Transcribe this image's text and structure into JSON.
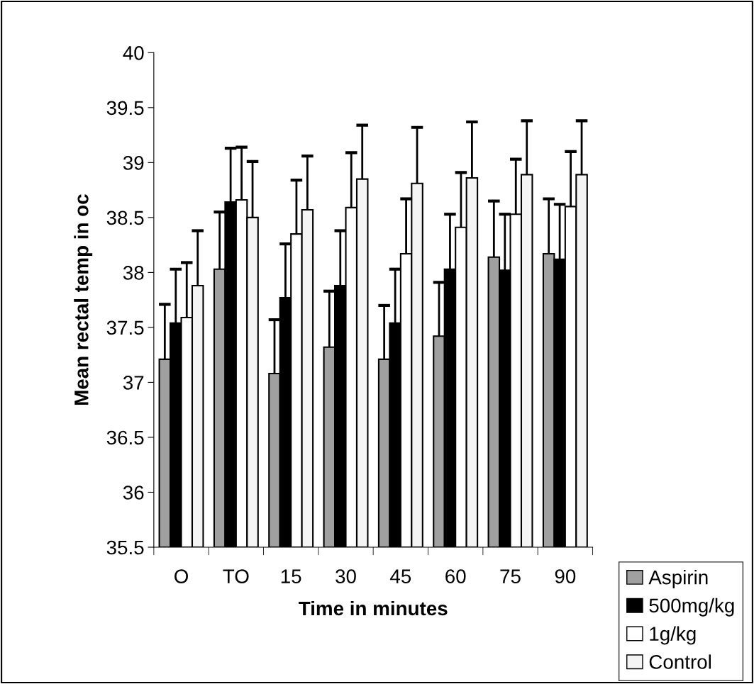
{
  "chart_data": {
    "type": "bar",
    "xlabel": "Time in minutes",
    "ylabel": "Mean rectal temp in oc",
    "categories": [
      "O",
      "TO",
      "15",
      "30",
      "45",
      "60",
      "75",
      "90"
    ],
    "ylim": [
      35.5,
      40
    ],
    "yticks": [
      35.5,
      36,
      36.5,
      37,
      37.5,
      38,
      38.5,
      39,
      39.5,
      40
    ],
    "grid": false,
    "legend": "bottom right",
    "series": [
      {
        "name": "Aspirin",
        "color": "#a0a0a0",
        "values": [
          37.21,
          38.03,
          37.08,
          37.32,
          37.21,
          37.42,
          38.14,
          38.17
        ],
        "errors": [
          [
            37.21,
            37.71
          ],
          [
            38.03,
            38.55
          ],
          [
            37.08,
            37.57
          ],
          [
            37.32,
            37.83
          ],
          [
            37.21,
            37.7
          ],
          [
            37.42,
            37.91
          ],
          [
            38.14,
            38.65
          ],
          [
            38.17,
            38.67
          ]
        ]
      },
      {
        "name": "500mg/kg",
        "color": "#000000",
        "values": [
          37.54,
          38.64,
          37.77,
          37.88,
          37.54,
          38.03,
          38.02,
          38.12
        ],
        "errors": [
          [
            37.54,
            38.03
          ],
          [
            38.64,
            39.13
          ],
          [
            37.77,
            38.26
          ],
          [
            37.88,
            38.38
          ],
          [
            37.54,
            38.03
          ],
          [
            38.03,
            38.53
          ],
          [
            38.02,
            38.53
          ],
          [
            38.12,
            38.62
          ]
        ]
      },
      {
        "name": "1g/kg",
        "color": "#ffffff",
        "values": [
          37.59,
          38.66,
          38.35,
          38.59,
          38.17,
          38.41,
          38.53,
          38.6
        ],
        "errors": [
          [
            37.59,
            38.09
          ],
          [
            38.66,
            39.14
          ],
          [
            38.35,
            38.84
          ],
          [
            38.59,
            39.09
          ],
          [
            38.17,
            38.67
          ],
          [
            38.41,
            38.91
          ],
          [
            38.53,
            39.03
          ],
          [
            38.6,
            39.1
          ]
        ]
      },
      {
        "name": "Control",
        "color": "#f4f4f4",
        "values": [
          37.88,
          38.5,
          38.57,
          38.85,
          38.81,
          38.86,
          38.89,
          38.89
        ],
        "errors": [
          [
            37.88,
            38.38
          ],
          [
            38.5,
            39.01
          ],
          [
            38.57,
            39.06
          ],
          [
            38.85,
            39.34
          ],
          [
            38.81,
            39.32
          ],
          [
            38.86,
            39.37
          ],
          [
            38.89,
            39.38
          ],
          [
            38.89,
            39.38
          ]
        ]
      }
    ]
  }
}
